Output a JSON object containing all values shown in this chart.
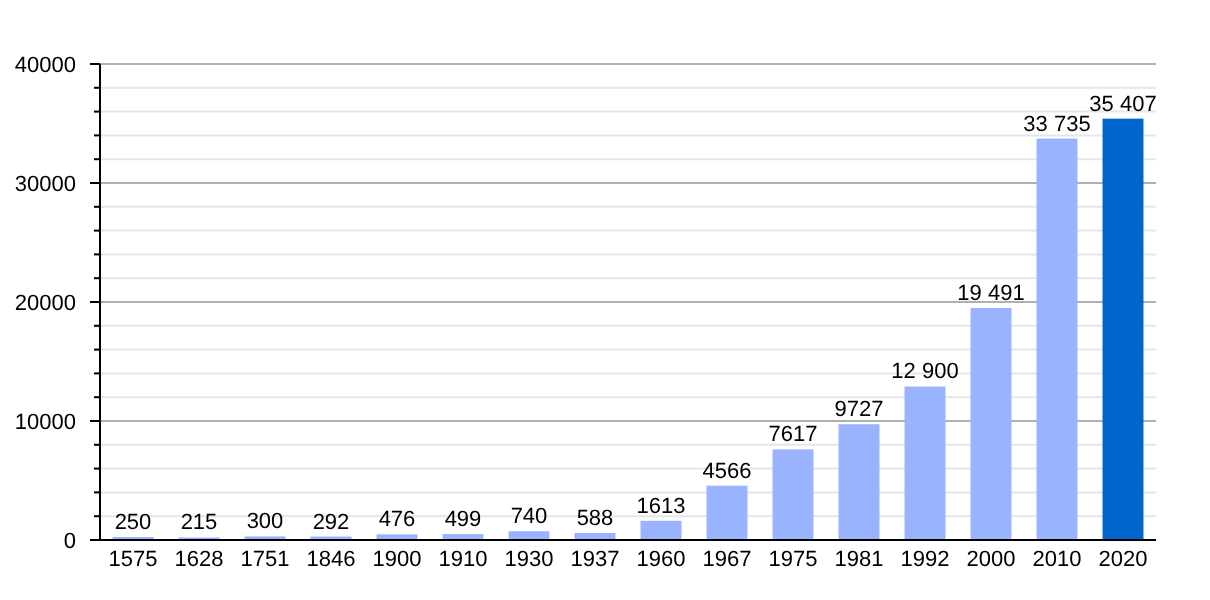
{
  "chart_data": {
    "type": "bar",
    "categories": [
      "1575",
      "1628",
      "1751",
      "1846",
      "1900",
      "1910",
      "1930",
      "1937",
      "1960",
      "1967",
      "1975",
      "1981",
      "1992",
      "2000",
      "2010",
      "2020"
    ],
    "values": [
      250,
      215,
      300,
      292,
      476,
      499,
      740,
      588,
      1613,
      4566,
      7617,
      9727,
      12900,
      19491,
      33735,
      35407
    ],
    "value_labels": [
      "250",
      "215",
      "300",
      "292",
      "476",
      "499",
      "740",
      "588",
      "1613",
      "4566",
      "7617",
      "9727",
      "12 900",
      "19 491",
      "33 735",
      "35 407"
    ],
    "colors": [
      "#99b3ff",
      "#99b3ff",
      "#99b3ff",
      "#99b3ff",
      "#99b3ff",
      "#99b3ff",
      "#99b3ff",
      "#99b3ff",
      "#99b3ff",
      "#99b3ff",
      "#99b3ff",
      "#99b3ff",
      "#99b3ff",
      "#99b3ff",
      "#99b3ff",
      "#0066cc"
    ],
    "ylim": [
      0,
      40000
    ],
    "yticks": [
      0,
      {
        "value": 2000,
        "label": null
      },
      {
        "value": 4000,
        "label": null
      },
      {
        "value": 6000,
        "label": null
      },
      {
        "value": 8000,
        "label": null
      },
      10000,
      {
        "value": 12000,
        "label": null
      },
      {
        "value": 14000,
        "label": null
      },
      {
        "value": 16000,
        "label": null
      },
      {
        "value": 18000,
        "label": null
      },
      20000,
      {
        "value": 22000,
        "label": null
      },
      {
        "value": 24000,
        "label": null
      },
      {
        "value": 26000,
        "label": null
      },
      {
        "value": 28000,
        "label": null
      },
      30000,
      {
        "value": 32000,
        "label": null
      },
      {
        "value": 34000,
        "label": null
      },
      {
        "value": 36000,
        "label": null
      },
      {
        "value": 38000,
        "label": null
      },
      40000
    ],
    "grid": "y"
  }
}
